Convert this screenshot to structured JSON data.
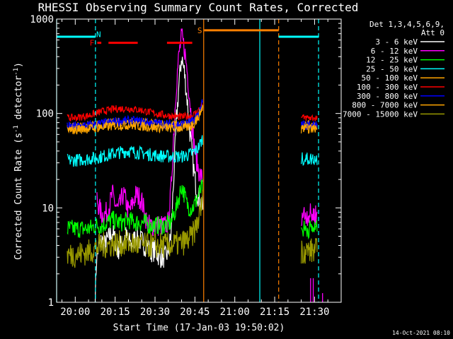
{
  "chart_data": {
    "type": "line",
    "title": "RHESSI Observing Summary Count Rates, Corrected",
    "xlabel": "Start Time (17-Jan-03 19:50:02)",
    "ylabel": "Corrected Count Rate (s-1 detector-1)",
    "ylabel_parts": {
      "main": "Corrected Count Rate (s",
      "exp1": "-1",
      "mid": " detector",
      "exp2": "-1",
      "end": ")"
    },
    "yscale": "log",
    "ylim": [
      1,
      1000
    ],
    "xlim": [
      -7,
      100
    ],
    "x_unit": "minutes after 20:00 (17-Jan-03)",
    "x_ticks": [
      {
        "value": 0,
        "label": "20:00"
      },
      {
        "value": 15,
        "label": "20:15"
      },
      {
        "value": 30,
        "label": "20:30"
      },
      {
        "value": 45,
        "label": "20:45"
      },
      {
        "value": 60,
        "label": "21:00"
      },
      {
        "value": 75,
        "label": "21:15"
      },
      {
        "value": 90,
        "label": "21:30"
      }
    ],
    "y_ticks": [
      {
        "value": 1,
        "label": "1"
      },
      {
        "value": 10,
        "label": "10"
      },
      {
        "value": 100,
        "label": "100"
      },
      {
        "value": 1000,
        "label": "1000"
      }
    ],
    "legend": {
      "header": [
        "Det 1,3,4,5,6,9,",
        "Att 0"
      ],
      "placement": "right"
    },
    "series": [
      {
        "name": "3 - 6 keV",
        "color": "#ffffff",
        "noise": 0.12,
        "points": [
          [
            7.5,
            1.0
          ],
          [
            8,
            3
          ],
          [
            9,
            4
          ],
          [
            10,
            4.5
          ],
          [
            11,
            4
          ],
          [
            12,
            4.5
          ],
          [
            13,
            5
          ],
          [
            14,
            5.5
          ],
          [
            15,
            4.5
          ],
          [
            16,
            3.5
          ],
          [
            17,
            4
          ],
          [
            18,
            4.5
          ],
          [
            19,
            5
          ],
          [
            20,
            4.5
          ],
          [
            21,
            4
          ],
          [
            22,
            4.5
          ],
          [
            23,
            5
          ],
          [
            24,
            4.5
          ],
          [
            25,
            4.5
          ],
          [
            26,
            4
          ],
          [
            27,
            4
          ],
          [
            28,
            3.5
          ],
          [
            30,
            3.5
          ],
          [
            32,
            3
          ],
          [
            34,
            3
          ],
          [
            35,
            3.5
          ],
          [
            36,
            5
          ],
          [
            37,
            20
          ],
          [
            38,
            80
          ],
          [
            39,
            200
          ],
          [
            40,
            400
          ],
          [
            41,
            280
          ],
          [
            42,
            150
          ],
          [
            43,
            70
          ],
          [
            44,
            35
          ],
          [
            45,
            20
          ],
          [
            46,
            14
          ],
          [
            47,
            12
          ],
          [
            48,
            10
          ]
        ]
      },
      {
        "name": "6 - 12 keV",
        "color": "#ff00ff",
        "noise": 0.12,
        "points": [
          [
            8,
            13
          ],
          [
            9,
            10
          ],
          [
            10,
            8.5
          ],
          [
            11,
            8.5
          ],
          [
            12,
            9
          ],
          [
            13,
            11
          ],
          [
            14,
            14
          ],
          [
            15,
            11
          ],
          [
            16,
            9.5
          ],
          [
            17,
            11
          ],
          [
            18,
            14
          ],
          [
            19,
            12
          ],
          [
            20,
            9
          ],
          [
            21,
            10
          ],
          [
            22,
            12
          ],
          [
            23,
            14
          ],
          [
            24,
            13
          ],
          [
            25,
            12
          ],
          [
            26,
            9
          ],
          [
            27,
            7
          ],
          [
            28,
            6.5
          ],
          [
            30,
            6.5
          ],
          [
            32,
            6.5
          ],
          [
            34,
            6.5
          ],
          [
            35,
            7
          ],
          [
            36,
            15
          ],
          [
            37,
            60
          ],
          [
            38,
            200
          ],
          [
            39,
            420
          ],
          [
            40,
            650
          ],
          [
            41,
            500
          ],
          [
            42,
            300
          ],
          [
            43,
            150
          ],
          [
            44,
            70
          ],
          [
            45,
            40
          ],
          [
            46,
            28
          ],
          [
            47,
            22
          ],
          [
            48,
            20
          ]
        ]
      },
      {
        "name": "12 - 25 keV",
        "color": "#00ff00",
        "noise": 0.1,
        "points": [
          [
            -3,
            6
          ],
          [
            0,
            6
          ],
          [
            5,
            6
          ],
          [
            8,
            6.5
          ],
          [
            10,
            6.5
          ],
          [
            12,
            7
          ],
          [
            14,
            7.5
          ],
          [
            16,
            7
          ],
          [
            18,
            7
          ],
          [
            20,
            7.5
          ],
          [
            22,
            7
          ],
          [
            24,
            7
          ],
          [
            26,
            7
          ],
          [
            28,
            6.5
          ],
          [
            30,
            6.5
          ],
          [
            32,
            6.5
          ],
          [
            34,
            6.5
          ],
          [
            36,
            7
          ],
          [
            38,
            10
          ],
          [
            39,
            13
          ],
          [
            40,
            17
          ],
          [
            41,
            14
          ],
          [
            42,
            11
          ],
          [
            43,
            10
          ],
          [
            44,
            10
          ],
          [
            45,
            11
          ],
          [
            46,
            13
          ],
          [
            47,
            15
          ],
          [
            48,
            17
          ]
        ]
      },
      {
        "name": "25 - 50 keV",
        "color": "#00ffff",
        "noise": 0.07,
        "points": [
          [
            -3,
            32
          ],
          [
            0,
            32
          ],
          [
            5,
            33
          ],
          [
            10,
            35
          ],
          [
            15,
            38
          ],
          [
            20,
            40
          ],
          [
            25,
            38
          ],
          [
            30,
            36
          ],
          [
            35,
            35
          ],
          [
            40,
            35
          ],
          [
            42,
            36
          ],
          [
            44,
            38
          ],
          [
            46,
            42
          ],
          [
            47,
            48
          ],
          [
            48,
            55
          ]
        ]
      },
      {
        "name": "50 - 100 keV",
        "color": "#ffa500",
        "noise": 0.05,
        "points": [
          [
            -3,
            71
          ],
          [
            0,
            72
          ],
          [
            5,
            74
          ],
          [
            10,
            77
          ],
          [
            15,
            80
          ],
          [
            20,
            82
          ],
          [
            25,
            80
          ],
          [
            30,
            78
          ],
          [
            35,
            76
          ],
          [
            40,
            76
          ],
          [
            42,
            77
          ],
          [
            44,
            80
          ],
          [
            46,
            95
          ],
          [
            47,
            110
          ],
          [
            48,
            130
          ]
        ]
      },
      {
        "name": "100 - 300 keV",
        "color": "#ff0000",
        "noise": 0.04,
        "points": [
          [
            -3,
            90
          ],
          [
            0,
            90
          ],
          [
            5,
            95
          ],
          [
            10,
            105
          ],
          [
            15,
            112
          ],
          [
            20,
            113
          ],
          [
            25,
            108
          ],
          [
            30,
            100
          ],
          [
            35,
            95
          ],
          [
            38,
            93
          ],
          [
            40,
            92
          ],
          [
            42,
            93
          ],
          [
            44,
            95
          ],
          [
            46,
            105
          ],
          [
            47,
            115
          ],
          [
            48,
            130
          ]
        ]
      },
      {
        "name": "300 - 800 keV",
        "color": "#0000ff",
        "noise": 0.05,
        "points": [
          [
            -3,
            72
          ],
          [
            0,
            73
          ],
          [
            5,
            75
          ],
          [
            10,
            78
          ],
          [
            15,
            82
          ],
          [
            20,
            84
          ],
          [
            25,
            82
          ],
          [
            30,
            79
          ],
          [
            35,
            77
          ],
          [
            40,
            77
          ],
          [
            42,
            78
          ],
          [
            44,
            82
          ],
          [
            46,
            97
          ],
          [
            47,
            112
          ],
          [
            48,
            132
          ]
        ]
      },
      {
        "name": "800 - 7000 keV",
        "color": "#ffa500",
        "noise": 0.05,
        "points": [
          [
            -3,
            66
          ],
          [
            0,
            67
          ],
          [
            5,
            69
          ],
          [
            10,
            71
          ],
          [
            15,
            74
          ],
          [
            20,
            75
          ],
          [
            25,
            73
          ],
          [
            30,
            71
          ],
          [
            35,
            70
          ],
          [
            40,
            70
          ],
          [
            42,
            71
          ],
          [
            44,
            74
          ],
          [
            46,
            88
          ],
          [
            47,
            102
          ],
          [
            48,
            120
          ]
        ]
      },
      {
        "name": "7000 - 15000 keV",
        "color": "#999900",
        "noise": 0.14,
        "points": [
          [
            -3,
            3.2
          ],
          [
            0,
            3.2
          ],
          [
            5,
            3.4
          ],
          [
            8,
            3.8
          ],
          [
            10,
            4
          ],
          [
            12,
            4
          ],
          [
            15,
            4.2
          ],
          [
            20,
            4.2
          ],
          [
            25,
            4
          ],
          [
            30,
            4
          ],
          [
            35,
            4
          ],
          [
            40,
            4.2
          ],
          [
            42,
            4.5
          ],
          [
            44,
            5
          ],
          [
            46,
            7
          ],
          [
            47,
            9
          ],
          [
            48,
            12
          ]
        ]
      }
    ],
    "resume_segment": {
      "comment_free": true,
      "x_range": [
        85,
        91
      ],
      "series_values": [
        {
          "series": 1,
          "y": 8.5
        },
        {
          "series": 2,
          "y": 6
        },
        {
          "series": 3,
          "y": 33
        },
        {
          "series": 4,
          "y": 75
        },
        {
          "series": 5,
          "y": 90
        },
        {
          "series": 6,
          "y": 75
        },
        {
          "series": 7,
          "y": 69
        },
        {
          "series": 8,
          "y": 3.5
        }
      ]
    },
    "flag_bars": [
      {
        "label": "",
        "color": "#00ffff",
        "x": [
          -7,
          7.5
        ],
        "y": 650
      },
      {
        "label": "N",
        "color": "#00ffff",
        "x": null,
        "y": 690,
        "label_x": 8.8
      },
      {
        "label": "F",
        "color": "#ff0000",
        "x": [
          8.3,
          9.8
        ],
        "y": 560,
        "label_x": 6.3
      },
      {
        "label": "",
        "color": "#ff0000",
        "x": [
          12.5,
          23.5
        ],
        "y": 560
      },
      {
        "label": "",
        "color": "#ff0000",
        "x": [
          34.5,
          44
        ],
        "y": 560
      },
      {
        "label": "S",
        "color": "#ff8000",
        "x": [
          48.5,
          76.5
        ],
        "y": 760,
        "label_x": 46.8
      },
      {
        "label": "",
        "color": "#00ffff",
        "x": [
          76.5,
          91.5
        ],
        "y": 650
      }
    ],
    "vertical_lines": [
      {
        "x": -7,
        "color": "#00ffff",
        "style": "solid"
      },
      {
        "x": 7.6,
        "color": "#00ffff",
        "style": "dashed"
      },
      {
        "x": 48.3,
        "color": "#ff8000",
        "style": "solid"
      },
      {
        "x": 69.4,
        "color": "#00ffff",
        "style": "solid"
      },
      {
        "x": 76.5,
        "color": "#ff8000",
        "style": "dashed"
      },
      {
        "x": 91.5,
        "color": "#00ffff",
        "style": "dashed"
      }
    ],
    "spikes": [
      {
        "x": 88.5,
        "y": [
          1,
          1.8
        ],
        "color": "#ff00ff"
      },
      {
        "x": 89.5,
        "y": [
          1,
          1.8
        ],
        "color": "#ff00ff"
      },
      {
        "x": 93,
        "y": [
          1,
          1.25
        ],
        "color": "#ff00ff"
      }
    ],
    "grid": false
  },
  "timestamp": "14-Oct-2021 08:10"
}
